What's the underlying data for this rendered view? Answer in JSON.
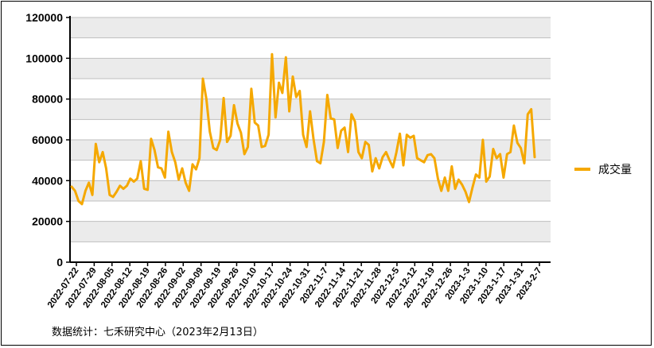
{
  "chart_data": {
    "type": "line",
    "title": "",
    "xlabel": "",
    "ylabel": "",
    "ylim": [
      0,
      120000
    ],
    "y_ticks": [
      "0",
      "20000",
      "40000",
      "60000",
      "80000",
      "100000",
      "120000"
    ],
    "x_tick_labels": [
      "2022-07-22",
      "2022-07-29",
      "2022-08-05",
      "2022-08-12",
      "2022-08-19",
      "2022-08-26",
      "2022-09-02",
      "2022-09-09",
      "2022-09-19",
      "2022-09-26",
      "2022-10-10",
      "2022-10-17",
      "2022-10-24",
      "2022-10-31",
      "2022-11-7",
      "2022-11-14",
      "2022-11-21",
      "2022-11-28",
      "2022-12-5",
      "2022-12-12",
      "2022-12-19",
      "2022-12-26",
      "2023-1-3",
      "2023-1-10",
      "2023-1-17",
      "2023-1-31",
      "2023-2-7"
    ],
    "grid": true,
    "legend_position": "right",
    "colors": {
      "line": "#F5A800",
      "band": "#EBEBEB",
      "grid": "#BFBFBF"
    },
    "series": [
      {
        "name": "成交量",
        "values": [
          37000,
          35000,
          30000,
          28500,
          35000,
          39000,
          33000,
          58000,
          49000,
          54000,
          46000,
          33000,
          32000,
          34500,
          37500,
          36000,
          37500,
          41000,
          39500,
          41000,
          49500,
          36000,
          35500,
          60500,
          55000,
          46500,
          46000,
          41500,
          64000,
          54000,
          49000,
          40500,
          46000,
          39000,
          35000,
          48000,
          45500,
          51000,
          90000,
          80000,
          64000,
          56000,
          55000,
          60000,
          80500,
          59000,
          62000,
          77000,
          68000,
          63500,
          53000,
          56500,
          85000,
          68500,
          67000,
          56500,
          57000,
          62500,
          102000,
          71000,
          88000,
          83000,
          100500,
          74000,
          91000,
          81000,
          84000,
          62500,
          56500,
          74000,
          60500,
          49500,
          48500,
          59000,
          82000,
          70500,
          70000,
          56000,
          64500,
          66000,
          54000,
          72500,
          69000,
          54000,
          51000,
          59000,
          57500,
          44500,
          51000,
          46000,
          51500,
          54000,
          50000,
          46500,
          54000,
          63000,
          47500,
          62500,
          61000,
          62000,
          51000,
          50000,
          49000,
          52500,
          53000,
          51000,
          41000,
          35000,
          41500,
          35000,
          47000,
          36000,
          40500,
          38000,
          34500,
          29500,
          36500,
          43000,
          41500,
          60000,
          39500,
          42000,
          55500,
          51000,
          53000,
          41500,
          53000,
          54000,
          67000,
          58500,
          56000,
          48500,
          72500,
          75000,
          51500
        ]
      }
    ]
  },
  "legend": {
    "label": "成交量",
    "icon": "line-swatch"
  },
  "source_note": "数据统计：七禾研究中心（2023年2月13日）"
}
